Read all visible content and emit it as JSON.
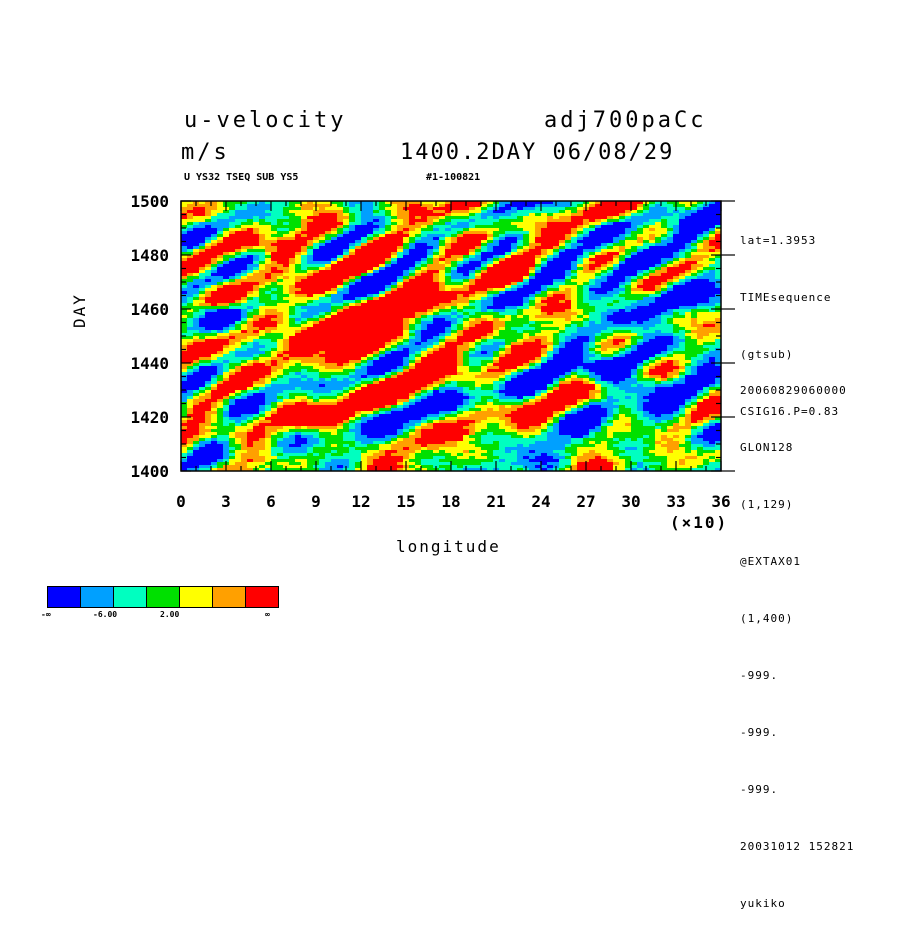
{
  "header": {
    "variable": "u-velocity",
    "units": "m/s",
    "run": "adj700paCc",
    "time": "1400.2DAY 06/08/29",
    "sub_left": "U YS32 TSEQ SUB YS5",
    "sub_right": "#1-100821"
  },
  "side_info_top": [
    "lat=1.3953",
    "TIMEsequence",
    "(gtsub)",
    "CSIG16.P=0.83"
  ],
  "side_info_bottom": [
    "20060829060000",
    "GLON128",
    "(1,129)",
    "@EXTAX01",
    "(1,400)",
    "-999.",
    "-999.",
    "-999.",
    "20031012 152821",
    "yukiko"
  ],
  "colors": {
    "levels": [
      "#0000ff",
      "#00a0ff",
      "#00ffc0",
      "#00e000",
      "#ffff00",
      "#ffa000",
      "#ff0000"
    ]
  },
  "legend": {
    "labels": [
      "-∞",
      "-6.00",
      "2.00",
      "∞"
    ]
  },
  "chart_data": {
    "type": "heatmap",
    "title": "u-velocity",
    "xlabel": "longitude",
    "ylabel": "DAY",
    "x_multiplier": "(×10)",
    "xlim": [
      0,
      36
    ],
    "ylim": [
      1400,
      1500
    ],
    "xticks": [
      "0",
      "3",
      "6",
      "9",
      "12",
      "15",
      "18",
      "21",
      "24",
      "27",
      "30",
      "33",
      "36"
    ],
    "yticks": [
      "1400",
      "1420",
      "1440",
      "1460",
      "1480",
      "1500"
    ],
    "features": [
      {
        "x": 10.5,
        "y": 1452,
        "level": "red"
      },
      {
        "x": 11.5,
        "y": 1446,
        "level": "red"
      },
      {
        "x": 7.0,
        "y": 1483,
        "level": "red"
      },
      {
        "x": 19.0,
        "y": 1496,
        "level": "red"
      },
      {
        "x": 22.0,
        "y": 1473,
        "level": "red"
      },
      {
        "x": 9.0,
        "y": 1420,
        "level": "red"
      },
      {
        "x": 15.0,
        "y": 1462,
        "level": "red"
      },
      {
        "x": 31.0,
        "y": 1432,
        "level": "blue"
      },
      {
        "x": 28.0,
        "y": 1437,
        "level": "blue"
      },
      {
        "x": 34.0,
        "y": 1480,
        "level": "blue"
      },
      {
        "x": 2.0,
        "y": 1458,
        "level": "blue"
      },
      {
        "x": 30.0,
        "y": 1466,
        "level": "blue"
      }
    ]
  }
}
